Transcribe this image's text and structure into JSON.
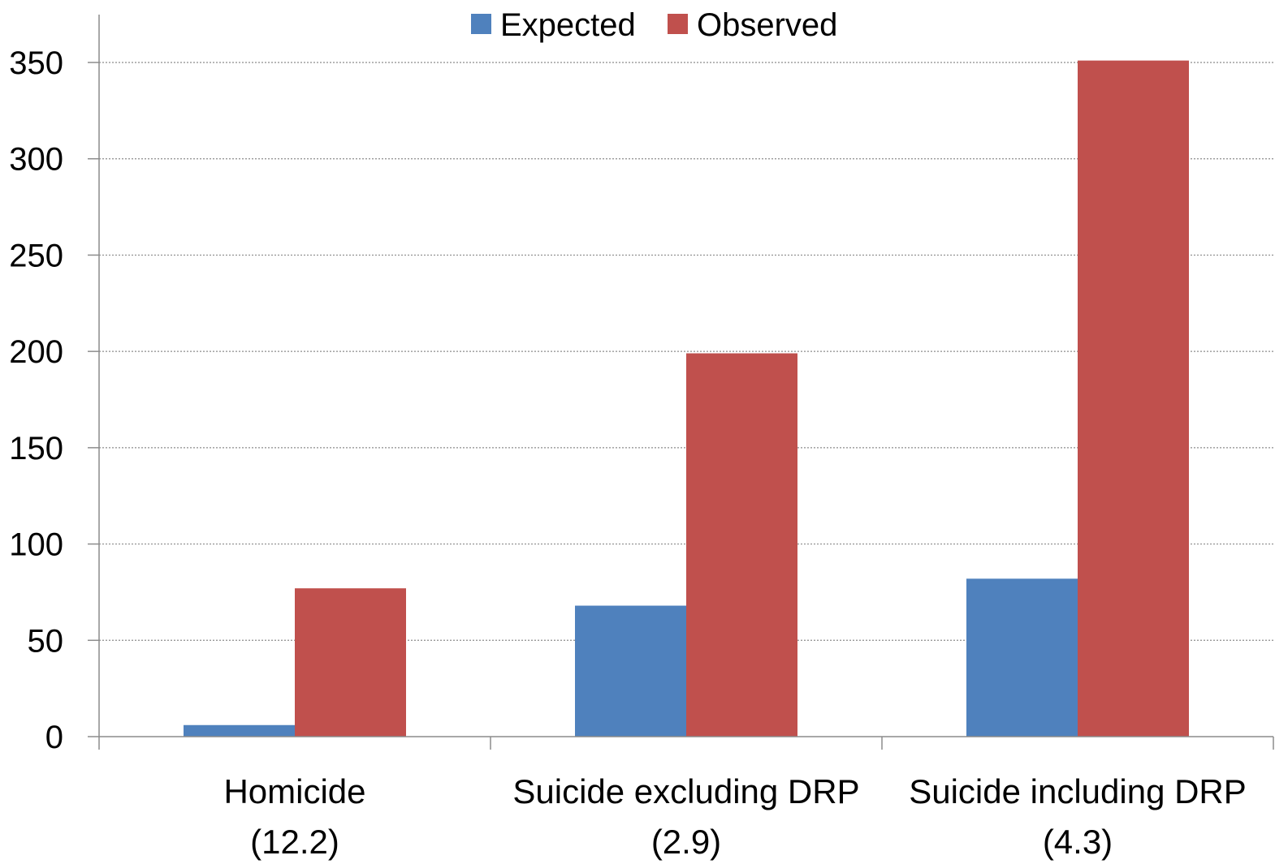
{
  "chart_data": {
    "type": "bar",
    "categories": [
      {
        "line1": "Homicide",
        "line2": "(12.2)"
      },
      {
        "line1": "Suicide excluding DRP",
        "line2": "(2.9)"
      },
      {
        "line1": "Suicide including DRP",
        "line2": "(4.3)"
      }
    ],
    "series": [
      {
        "name": "Expected",
        "color": "#4F81BD",
        "values": [
          6,
          68,
          82
        ]
      },
      {
        "name": "Observed",
        "color": "#C0504D",
        "values": [
          77,
          199,
          351
        ]
      }
    ],
    "yticks": [
      "0",
      "50",
      "100",
      "150",
      "200",
      "250",
      "300",
      "350"
    ],
    "ylim": [
      0,
      350
    ],
    "grid": true,
    "legend_position": "top-center",
    "title": "",
    "xlabel": "",
    "ylabel": ""
  }
}
